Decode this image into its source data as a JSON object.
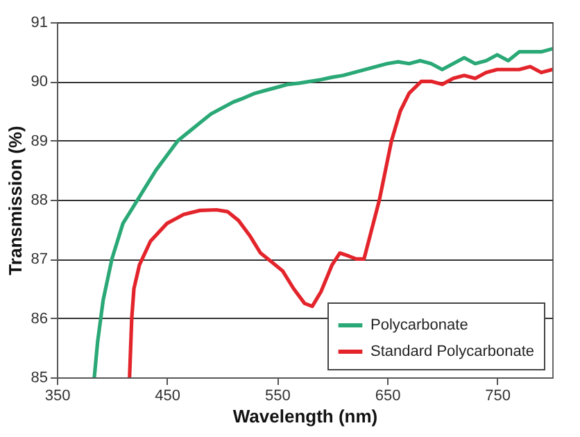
{
  "chart_data": {
    "type": "line",
    "xlabel": "Wavelength (nm)",
    "ylabel": "Transmission (%)",
    "xlim": [
      350,
      800
    ],
    "xticks": [
      350,
      450,
      550,
      650,
      750
    ],
    "ylim": [
      85,
      91
    ],
    "yticks": [
      85,
      86,
      87,
      88,
      89,
      90,
      91
    ],
    "grid": "y",
    "legend": "bottom right",
    "line_style": "solid",
    "series": [
      {
        "name": "Polycarbonate",
        "color": "#2aa876",
        "x": [
          384,
          387,
          392,
          400,
          410,
          420,
          430,
          440,
          450,
          460,
          470,
          480,
          490,
          500,
          510,
          520,
          530,
          540,
          550,
          560,
          570,
          580,
          590,
          600,
          610,
          620,
          630,
          640,
          650,
          660,
          670,
          680,
          690,
          700,
          710,
          720,
          730,
          740,
          750,
          760,
          770,
          780,
          790,
          800
        ],
        "values": [
          85,
          85.6,
          86.3,
          87.0,
          87.6,
          87.9,
          88.2,
          88.5,
          88.75,
          89.0,
          89.15,
          89.3,
          89.45,
          89.55,
          89.65,
          89.72,
          89.8,
          89.85,
          89.9,
          89.95,
          89.97,
          90.0,
          90.03,
          90.07,
          90.1,
          90.15,
          90.2,
          90.25,
          90.3,
          90.33,
          90.3,
          90.35,
          90.3,
          90.2,
          90.3,
          90.4,
          90.3,
          90.35,
          90.45,
          90.35,
          90.5,
          90.5,
          90.5,
          90.55
        ]
      },
      {
        "name": "Standard Polycarbonate",
        "color": "#e3242b",
        "x": [
          416,
          418,
          420,
          425,
          435,
          450,
          465,
          480,
          495,
          505,
          515,
          525,
          535,
          545,
          555,
          565,
          575,
          582,
          590,
          600,
          607,
          615,
          622,
          629,
          636,
          643,
          654,
          662,
          670,
          681,
          690,
          700,
          710,
          720,
          730,
          740,
          750,
          760,
          770,
          780,
          790,
          800
        ],
        "values": [
          85,
          86,
          86.5,
          86.9,
          87.3,
          87.6,
          87.75,
          87.82,
          87.83,
          87.8,
          87.65,
          87.4,
          87.1,
          86.95,
          86.8,
          86.5,
          86.25,
          86.2,
          86.45,
          86.9,
          87.1,
          87.05,
          87.0,
          87.0,
          87.5,
          88.0,
          89.0,
          89.5,
          89.8,
          90.0,
          90.0,
          89.95,
          90.05,
          90.1,
          90.05,
          90.15,
          90.2,
          90.2,
          90.2,
          90.25,
          90.15,
          90.2
        ]
      }
    ]
  }
}
